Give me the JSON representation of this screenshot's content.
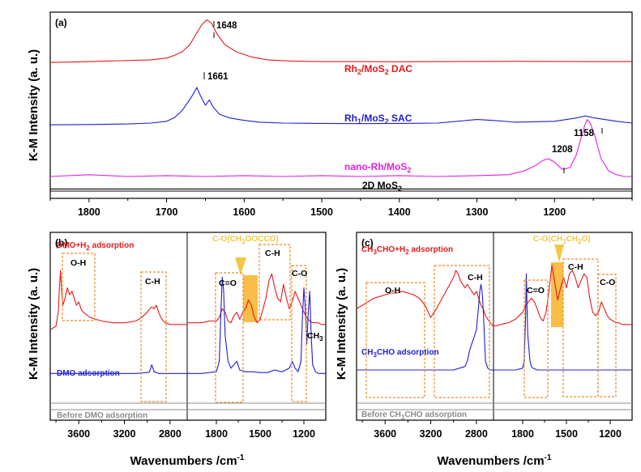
{
  "colors": {
    "red": "#e31a1c",
    "blue": "#1f1fd0",
    "magenta": "#e020e0",
    "gray": "#8c8c8c",
    "orange": "#f08a24",
    "yellow": "#f7b733",
    "callout": "#f2c744"
  },
  "chart_data": [
    {
      "panel": "(a)",
      "type": "line",
      "xlabel": "",
      "ylabel": "K-M Intensity (a. u.)",
      "xlim": [
        1850,
        1100
      ],
      "x_reversed": true,
      "x_ticks": [
        1800,
        1700,
        1600,
        1500,
        1400,
        1300,
        1200
      ],
      "grid": false,
      "peak_labels": [
        {
          "text": "1648",
          "x": 1648
        },
        {
          "text": "1661",
          "x": 1661
        },
        {
          "text": "1208",
          "x": 1208
        },
        {
          "text": "1158",
          "x": 1158
        }
      ],
      "series": [
        {
          "name": "Rh2/MoS2 DAC",
          "label_main": "Rh",
          "label_sub1": "2",
          "label_mid": "/MoS",
          "label_sub2": "2",
          "label_tail": " DAC",
          "color": "red",
          "x": [
            1850,
            1800,
            1760,
            1720,
            1700,
            1690,
            1680,
            1670,
            1662,
            1655,
            1648,
            1642,
            1635,
            1625,
            1610,
            1590,
            1570,
            1540,
            1500,
            1450,
            1400,
            1350,
            1300,
            1250,
            1200,
            1150,
            1100
          ],
          "y": [
            0.74,
            0.745,
            0.75,
            0.755,
            0.765,
            0.78,
            0.8,
            0.84,
            0.9,
            0.95,
            0.98,
            0.96,
            0.9,
            0.84,
            0.8,
            0.77,
            0.755,
            0.748,
            0.745,
            0.745,
            0.744,
            0.745,
            0.746,
            0.747,
            0.746,
            0.745,
            0.745
          ]
        },
        {
          "name": "Rh1/MoS2 SAC",
          "label_main": "Rh",
          "label_sub1": "1",
          "label_mid": "/MoS",
          "label_sub2": "2",
          "label_tail": " SAC",
          "color": "blue",
          "x": [
            1850,
            1800,
            1750,
            1720,
            1700,
            1690,
            1680,
            1672,
            1666,
            1661,
            1656,
            1650,
            1645,
            1640,
            1632,
            1620,
            1600,
            1580,
            1550,
            1500,
            1450,
            1400,
            1350,
            1300,
            1280,
            1250,
            1200,
            1170,
            1160,
            1150,
            1120,
            1100
          ],
          "y": [
            0.39,
            0.392,
            0.395,
            0.4,
            0.41,
            0.43,
            0.47,
            0.52,
            0.56,
            0.6,
            0.55,
            0.5,
            0.53,
            0.49,
            0.45,
            0.43,
            0.415,
            0.405,
            0.4,
            0.398,
            0.397,
            0.398,
            0.4,
            0.42,
            0.415,
            0.405,
            0.41,
            0.43,
            0.44,
            0.43,
            0.41,
            0.4
          ]
        },
        {
          "name": "nano-Rh/MoS2",
          "label_main": "nano-Rh/MoS",
          "label_sub1": "2",
          "label_mid": "",
          "label_sub2": "",
          "label_tail": "",
          "color": "magenta",
          "x": [
            1850,
            1800,
            1750,
            1700,
            1650,
            1600,
            1550,
            1500,
            1450,
            1400,
            1350,
            1300,
            1260,
            1240,
            1225,
            1215,
            1208,
            1200,
            1190,
            1180,
            1172,
            1165,
            1160,
            1158,
            1154,
            1148,
            1140,
            1130,
            1120,
            1110,
            1100
          ],
          "y": [
            0.1,
            0.11,
            0.1,
            0.105,
            0.1,
            0.105,
            0.1,
            0.105,
            0.1,
            0.105,
            0.1,
            0.105,
            0.11,
            0.13,
            0.16,
            0.19,
            0.2,
            0.18,
            0.14,
            0.15,
            0.22,
            0.33,
            0.4,
            0.42,
            0.4,
            0.33,
            0.2,
            0.13,
            0.11,
            0.1,
            0.1
          ]
        },
        {
          "name": "2D MoS2",
          "label_main": "2D MoS",
          "label_sub1": "2",
          "label_mid": "",
          "label_sub2": "",
          "label_tail": "",
          "color": "black",
          "x": [
            1850,
            1100
          ],
          "y": [
            0.03,
            0.03
          ]
        }
      ]
    },
    {
      "panel": "(b)",
      "type": "line",
      "xlabel": "Wavenumbers /cm",
      "xlabel_sup": "-1",
      "ylabel": "K-M Intensity (a. u.)",
      "x_reversed": true,
      "x_ticks_left": [
        3600,
        3200,
        2800
      ],
      "x_ticks_right": [
        1800,
        1500,
        1200
      ],
      "left_xlim": [
        3850,
        2650
      ],
      "right_xlim": [
        2000,
        1050
      ],
      "band_labels": [
        "O-H",
        "C-H",
        "C=O",
        "C-O(CH3OOCCO)",
        "C-H",
        "C-O",
        "CH3"
      ],
      "series": [
        {
          "name": "DMO+H2 adsorption",
          "color": "red",
          "left": {
            "x": [
              3850,
              3800,
              3780,
              3770,
              3760,
              3750,
              3740,
              3720,
              3700,
              3680,
              3660,
              3640,
              3620,
              3600,
              3580,
              3560,
              3540,
              3520,
              3500,
              3450,
              3400,
              3300,
              3200,
              3100,
              3050,
              3000,
              2980,
              2960,
              2940,
              2920,
              2900,
              2880,
              2860,
              2840,
              2800,
              2750,
              2700,
              2650
            ],
            "y": [
              0.48,
              0.5,
              0.58,
              0.72,
              0.82,
              0.7,
              0.62,
              0.66,
              0.72,
              0.68,
              0.7,
              0.66,
              0.62,
              0.64,
              0.6,
              0.58,
              0.57,
              0.56,
              0.55,
              0.54,
              0.53,
              0.52,
              0.52,
              0.53,
              0.55,
              0.58,
              0.6,
              0.61,
              0.6,
              0.62,
              0.58,
              0.55,
              0.53,
              0.52,
              0.51,
              0.51,
              0.51,
              0.51
            ]
          },
          "right": {
            "x": [
              2000,
              1950,
              1900,
              1850,
              1800,
              1780,
              1760,
              1740,
              1720,
              1700,
              1680,
              1660,
              1640,
              1620,
              1600,
              1580,
              1560,
              1540,
              1520,
              1500,
              1480,
              1460,
              1440,
              1420,
              1400,
              1380,
              1360,
              1340,
              1320,
              1300,
              1280,
              1260,
              1240,
              1220,
              1200,
              1180,
              1160,
              1140,
              1120,
              1100,
              1080,
              1050
            ],
            "y": [
              0.52,
              0.52,
              0.52,
              0.53,
              0.53,
              0.55,
              0.6,
              0.58,
              0.53,
              0.52,
              0.56,
              0.58,
              0.54,
              0.58,
              0.6,
              0.65,
              0.62,
              0.55,
              0.52,
              0.54,
              0.6,
              0.66,
              0.76,
              0.8,
              0.72,
              0.66,
              0.64,
              0.74,
              0.66,
              0.6,
              0.64,
              0.7,
              0.66,
              0.62,
              0.58,
              0.55,
              0.53,
              0.52,
              0.52,
              0.52,
              0.51,
              0.51
            ]
          }
        },
        {
          "name": "DMO adsorption",
          "color": "blue",
          "left": {
            "x": [
              3850,
              3700,
              3500,
              3300,
              3100,
              3000,
              2980,
              2960,
              2950,
              2940,
              2920,
              2900,
              2850,
              2800,
              2700,
              2650
            ],
            "y": [
              0.23,
              0.23,
              0.23,
              0.23,
              0.23,
              0.235,
              0.24,
              0.28,
              0.26,
              0.24,
              0.235,
              0.23,
              0.23,
              0.23,
              0.23,
              0.23
            ]
          },
          "right": {
            "x": [
              2000,
              1900,
              1850,
              1800,
              1780,
              1770,
              1760,
              1750,
              1740,
              1720,
              1700,
              1680,
              1660,
              1640,
              1600,
              1550,
              1500,
              1450,
              1400,
              1350,
              1300,
              1280,
              1260,
              1240,
              1220,
              1210,
              1200,
              1190,
              1180,
              1170,
              1160,
              1150,
              1140,
              1120,
              1100,
              1050
            ],
            "y": [
              0.23,
              0.23,
              0.235,
              0.24,
              0.3,
              0.55,
              0.78,
              0.7,
              0.45,
              0.3,
              0.26,
              0.28,
              0.3,
              0.25,
              0.24,
              0.24,
              0.235,
              0.235,
              0.25,
              0.24,
              0.26,
              0.3,
              0.26,
              0.24,
              0.3,
              0.55,
              0.72,
              0.6,
              0.4,
              0.58,
              0.7,
              0.45,
              0.28,
              0.24,
              0.23,
              0.23
            ]
          }
        },
        {
          "name": "Before DMO adsorption",
          "color": "gray",
          "left": {
            "x": [
              3850,
              2650
            ],
            "y": [
              0.06,
              0.06
            ]
          },
          "right": {
            "x": [
              2000,
              1050
            ],
            "y": [
              0.06,
              0.06
            ]
          }
        }
      ]
    },
    {
      "panel": "(c)",
      "type": "line",
      "xlabel": "Wavenumbers /cm",
      "xlabel_sup": "-1",
      "ylabel": "K-M Intensity (a. u.)",
      "x_reversed": true,
      "x_ticks_left": [
        3600,
        3200,
        2800
      ],
      "x_ticks_right": [
        1800,
        1500,
        1200
      ],
      "left_xlim": [
        3850,
        2650
      ],
      "right_xlim": [
        2000,
        1050
      ],
      "band_labels": [
        "O-H",
        "C-H",
        "C=O",
        "C-O(CH3CH2O)",
        "C-H",
        "C-O"
      ],
      "series": [
        {
          "name": "CH3CHO+H2 adsorption",
          "color": "red",
          "left": {
            "x": [
              3850,
              3800,
              3750,
              3700,
              3650,
              3600,
              3550,
              3500,
              3450,
              3400,
              3350,
              3300,
              3250,
              3200,
              3150,
              3100,
              3050,
              3000,
              2980,
              2960,
              2940,
              2920,
              2900,
              2880,
              2860,
              2840,
              2820,
              2800,
              2780,
              2760,
              2740,
              2720,
              2700,
              2680,
              2650
            ],
            "y": [
              0.6,
              0.62,
              0.64,
              0.66,
              0.67,
              0.68,
              0.69,
              0.69,
              0.7,
              0.69,
              0.68,
              0.66,
              0.62,
              0.55,
              0.6,
              0.66,
              0.72,
              0.78,
              0.82,
              0.8,
              0.76,
              0.74,
              0.72,
              0.74,
              0.72,
              0.7,
              0.68,
              0.7,
              0.66,
              0.62,
              0.6,
              0.56,
              0.54,
              0.52,
              0.5
            ]
          },
          "right": {
            "x": [
              2000,
              1950,
              1900,
              1850,
              1800,
              1780,
              1760,
              1740,
              1720,
              1700,
              1680,
              1660,
              1640,
              1620,
              1600,
              1580,
              1560,
              1540,
              1520,
              1500,
              1480,
              1460,
              1440,
              1420,
              1400,
              1380,
              1360,
              1340,
              1320,
              1300,
              1280,
              1260,
              1240,
              1220,
              1200,
              1180,
              1160,
              1140,
              1120,
              1100,
              1050
            ],
            "y": [
              0.5,
              0.51,
              0.52,
              0.54,
              0.58,
              0.62,
              0.64,
              0.66,
              0.64,
              0.6,
              0.55,
              0.53,
              0.58,
              0.7,
              0.85,
              0.75,
              0.65,
              0.72,
              0.78,
              0.72,
              0.8,
              0.82,
              0.78,
              0.72,
              0.76,
              0.8,
              0.78,
              0.66,
              0.58,
              0.56,
              0.58,
              0.64,
              0.6,
              0.56,
              0.54,
              0.53,
              0.52,
              0.52,
              0.51,
              0.51,
              0.51
            ]
          }
        },
        {
          "name": "CH3CHO adsorption",
          "color": "blue",
          "left": {
            "x": [
              3850,
              3600,
              3400,
              3200,
              3000,
              2950,
              2900,
              2880,
              2860,
              2840,
              2820,
              2800,
              2790,
              2780,
              2770,
              2760,
              2750,
              2740,
              2730,
              2720,
              2700,
              2680,
              2650
            ],
            "y": [
              0.25,
              0.25,
              0.25,
              0.25,
              0.25,
              0.26,
              0.27,
              0.3,
              0.36,
              0.4,
              0.44,
              0.48,
              0.55,
              0.62,
              0.7,
              0.74,
              0.7,
              0.6,
              0.45,
              0.3,
              0.26,
              0.25,
              0.25
            ]
          },
          "right": {
            "x": [
              2000,
              1900,
              1850,
              1800,
              1790,
              1780,
              1775,
              1770,
              1765,
              1760,
              1755,
              1750,
              1740,
              1730,
              1700,
              1650,
              1600,
              1500,
              1400,
              1300,
              1200,
              1100,
              1050
            ],
            "y": [
              0.25,
              0.25,
              0.25,
              0.26,
              0.3,
              0.55,
              0.8,
              0.6,
              0.45,
              0.4,
              0.35,
              0.3,
              0.27,
              0.26,
              0.25,
              0.25,
              0.25,
              0.25,
              0.25,
              0.25,
              0.25,
              0.25,
              0.25
            ]
          }
        },
        {
          "name": "Before CH3CHO adsorption",
          "color": "gray",
          "left": {
            "x": [
              3850,
              2650
            ],
            "y": [
              0.06,
              0.06
            ]
          },
          "right": {
            "x": [
              2000,
              1050
            ],
            "y": [
              0.06,
              0.06
            ]
          }
        }
      ]
    }
  ],
  "labels": {
    "panel_a": "(a)",
    "panel_b": "(b)",
    "panel_c": "(c)",
    "ylabel": "K-M Intensity (a. u.)",
    "xlabel": "Wavenumbers /cm",
    "xlabel_sup": "-1",
    "peak_1648": "1648",
    "peak_1661": "1661",
    "peak_1208": "1208",
    "peak_1158": "1158",
    "b_oh": "O-H",
    "b_ch_left": "C-H",
    "b_co_double": "C=O",
    "b_callout_main": "C-O(CH",
    "b_callout_sub1": "3",
    "b_callout_tail": "OOCCO)",
    "b_ch_right": "C-H",
    "b_co_right": "C-O",
    "b_ch3_main": "CH",
    "b_ch3_sub": "3",
    "b_red_main": "DMO+H",
    "b_red_sub": "2",
    "b_red_tail": " adsorption",
    "b_blue": "DMO adsorption",
    "b_gray": "Before DMO adsorption",
    "c_oh": "O-H",
    "c_ch_left": "C-H",
    "c_co_double": "C=O",
    "c_callout_main": "C-O(CH",
    "c_callout_sub1": "3",
    "c_callout_mid": "CH",
    "c_callout_sub2": "2",
    "c_callout_tail": "O)",
    "c_ch_right": "C-H",
    "c_co_right": "C-O",
    "c_red_main": "CH",
    "c_red_sub1": "3",
    "c_red_mid": "CHO+H",
    "c_red_sub2": "2",
    "c_red_tail": " adsorption",
    "c_blue_main": "CH",
    "c_blue_sub": "3",
    "c_blue_tail": "CHO adsorption",
    "c_gray_main": "Before CH",
    "c_gray_sub": "3",
    "c_gray_tail": "CHO adsorption"
  }
}
